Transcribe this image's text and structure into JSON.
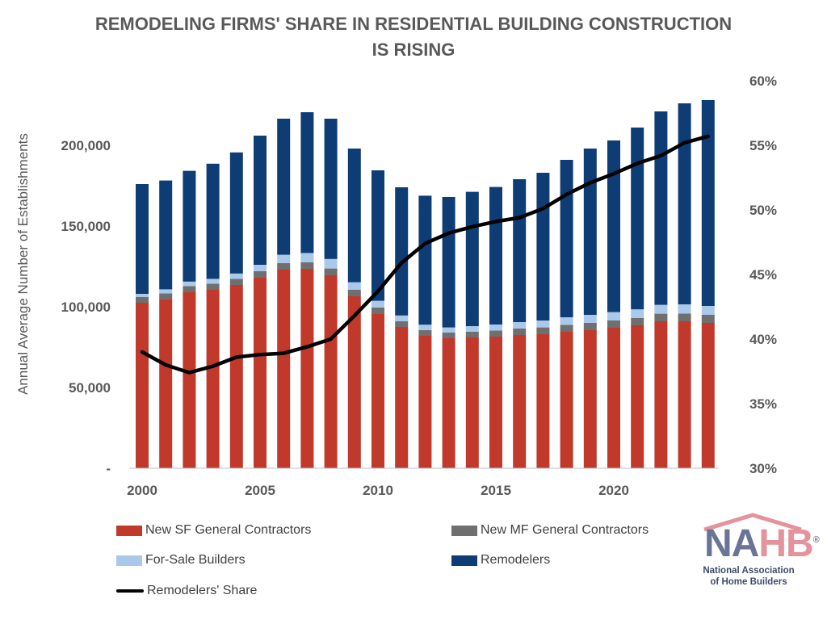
{
  "title_line1": "REMODELING FIRMS' SHARE IN RESIDENTIAL BUILDING CONSTRUCTION",
  "title_line2": "IS RISING",
  "logo": {
    "name_part1": "NA",
    "name_part2": "HB",
    "registered": "®",
    "subtitle_line1": "National Association",
    "subtitle_line2": "of Home Builders"
  },
  "legend": {
    "sf": "New SF General Contractors",
    "mf": "New MF General Contractors",
    "forsale": "For-Sale Builders",
    "remodelers": "Remodelers",
    "share": "Remodelers' Share"
  },
  "colors": {
    "sf": "#c0392b",
    "mf": "#6f6f6f",
    "forsale": "#a9c8ea",
    "remodelers": "#0e3d75",
    "share": "#000000",
    "axis_text": "#595959",
    "grid": "#d9d9d9"
  },
  "chart_data": {
    "type": "bar",
    "stacked": true,
    "x": [
      2000,
      2001,
      2002,
      2003,
      2004,
      2005,
      2006,
      2007,
      2008,
      2009,
      2010,
      2011,
      2012,
      2013,
      2014,
      2015,
      2016,
      2017,
      2018,
      2019,
      2020,
      2021,
      2022,
      2023,
      2024
    ],
    "xticks": [
      "2000",
      "2005",
      "2010",
      "2015",
      "2020"
    ],
    "ylabel": "Annual Average Number of Establishments",
    "ylim": [
      0,
      240000
    ],
    "yticks": [
      "-",
      "50,000",
      "100,000",
      "150,000",
      "200,000"
    ],
    "y2lim": [
      0.3,
      0.6
    ],
    "y2ticks": [
      "30%",
      "35%",
      "40%",
      "45%",
      "50%",
      "55%",
      "60%"
    ],
    "series": [
      {
        "name": "New SF General Contractors",
        "key": "sf",
        "values": [
          102500,
          104800,
          109000,
          110500,
          113500,
          118000,
          123000,
          123500,
          119500,
          106500,
          95500,
          87500,
          82000,
          80500,
          81000,
          81500,
          82500,
          83000,
          84500,
          85500,
          87000,
          88500,
          91000,
          91000,
          90000
        ]
      },
      {
        "name": "New MF General Contractors",
        "key": "mf",
        "values": [
          3500,
          3500,
          3800,
          3800,
          3800,
          4000,
          4000,
          4000,
          4200,
          4000,
          4000,
          3500,
          3500,
          3500,
          3500,
          3800,
          4000,
          4200,
          4300,
          4500,
          4500,
          4600,
          4700,
          4800,
          5000
        ]
      },
      {
        "name": "For-Sale Builders",
        "key": "forsale",
        "values": [
          2000,
          2500,
          2800,
          3000,
          3300,
          4000,
          5200,
          5800,
          5900,
          4700,
          4200,
          3600,
          3400,
          3200,
          3500,
          3700,
          4000,
          4300,
          4700,
          5000,
          5200,
          5300,
          5500,
          5700,
          5500
        ]
      },
      {
        "name": "Remodelers",
        "key": "remodelers",
        "values": [
          68000,
          67400,
          68600,
          71300,
          75000,
          80000,
          84300,
          87200,
          86900,
          82800,
          80800,
          79400,
          79900,
          80800,
          83200,
          85200,
          88500,
          91500,
          97500,
          103000,
          106300,
          112600,
          119800,
          124500,
          127500
        ]
      }
    ],
    "line": {
      "name": "Remodelers' Share",
      "key": "share",
      "axis": "right",
      "values": [
        0.39,
        0.38,
        0.374,
        0.379,
        0.386,
        0.388,
        0.389,
        0.394,
        0.4,
        0.418,
        0.437,
        0.459,
        0.474,
        0.482,
        0.487,
        0.491,
        0.494,
        0.501,
        0.512,
        0.521,
        0.528,
        0.536,
        0.542,
        0.552,
        0.557
      ]
    },
    "grid": false,
    "legend_position": "bottom"
  }
}
